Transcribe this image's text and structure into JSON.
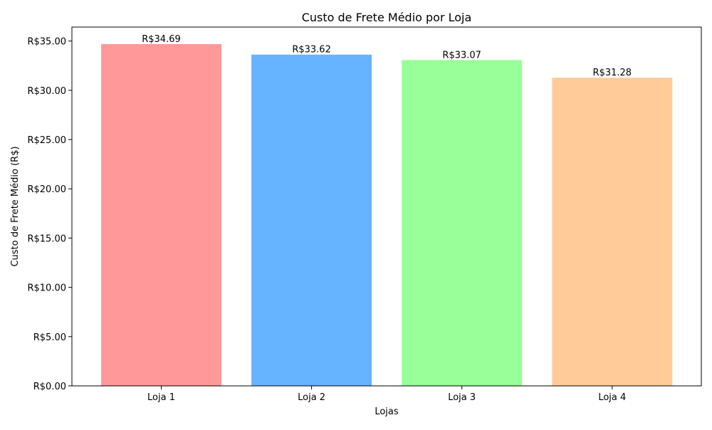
{
  "chart_data": {
    "type": "bar",
    "title": "Custo de Frete Médio por Loja",
    "xlabel": "Lojas",
    "ylabel": "Custo de Frete Médio (R$)",
    "categories": [
      "Loja 1",
      "Loja 2",
      "Loja 3",
      "Loja 4"
    ],
    "values": [
      34.69,
      33.62,
      33.07,
      31.28
    ],
    "value_labels": [
      "R$34.69",
      "R$33.62",
      "R$33.07",
      "R$31.28"
    ],
    "colors": [
      "#ff9999",
      "#66b3ff",
      "#99ff99",
      "#ffcc99"
    ],
    "ylim": [
      0,
      36.42
    ],
    "yticks": [
      0,
      5,
      10,
      15,
      20,
      25,
      30,
      35
    ],
    "ytick_labels": [
      "R$0.00",
      "R$5.00",
      "R$10.00",
      "R$15.00",
      "R$20.00",
      "R$25.00",
      "R$30.00",
      "R$35.00"
    ],
    "grid": false,
    "legend": "none"
  }
}
